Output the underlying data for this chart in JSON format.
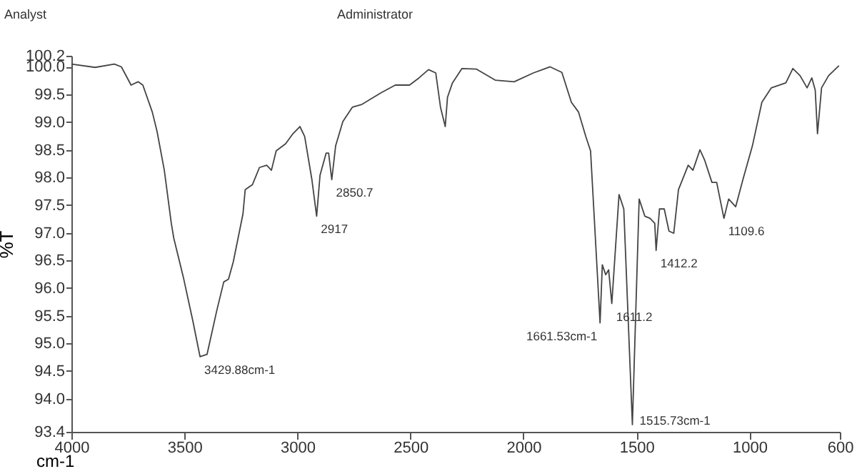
{
  "chart_data": {
    "type": "line",
    "xlabel": "cm-1",
    "ylabel": "%T",
    "annotations": [
      "Analyst",
      "Administrator",
      {
        "text": "3429.88cm-1",
        "x": 3431,
        "y": 94.76
      },
      {
        "text": "2917",
        "x": 2915,
        "y": 97.3
      },
      {
        "text": "2850.7",
        "x": 2848,
        "y": 97.96
      },
      {
        "text": "1661.53cm-1",
        "x": 1661,
        "y": 95.37
      },
      {
        "text": "1611.2",
        "x": 1609,
        "y": 95.72
      },
      {
        "text": "1515.73cm-1",
        "x": 1518,
        "y": 93.53
      },
      {
        "text": "1412.2",
        "x": 1413,
        "y": 96.68
      },
      {
        "text": "1109.6",
        "x": 1113,
        "y": 97.26
      }
    ],
    "x": [
      4000,
      3895,
      3810,
      3779,
      3736,
      3705,
      3684,
      3642,
      3621,
      3589,
      3558,
      3547,
      3505,
      3463,
      3431,
      3400,
      3357,
      3326,
      3305,
      3284,
      3241,
      3231,
      3199,
      3168,
      3136,
      3115,
      3094,
      3052,
      3020,
      2989,
      2968,
      2936,
      2915,
      2900,
      2873,
      2862,
      2848,
      2831,
      2799,
      2757,
      2715,
      2630,
      2567,
      2504,
      2462,
      2420,
      2388,
      2367,
      2346,
      2336,
      2314,
      2272,
      2209,
      2125,
      2041,
      1956,
      1882,
      1830,
      1788,
      1756,
      1724,
      1703,
      1661,
      1651,
      1636,
      1623,
      1609,
      1577,
      1556,
      1518,
      1488,
      1463,
      1440,
      1419,
      1413,
      1398,
      1377,
      1356,
      1335,
      1314,
      1271,
      1250,
      1219,
      1198,
      1166,
      1145,
      1113,
      1092,
      1061,
      1029,
      987,
      945,
      903,
      839,
      808,
      776,
      745,
      724,
      709,
      699,
      681,
      650,
      604
    ],
    "values": [
      100.05,
      99.99,
      100.05,
      100.0,
      99.67,
      99.73,
      99.67,
      99.18,
      98.83,
      98.13,
      97.17,
      96.9,
      96.2,
      95.41,
      94.76,
      94.8,
      95.59,
      96.11,
      96.16,
      96.47,
      97.34,
      97.78,
      97.87,
      98.18,
      98.22,
      98.13,
      98.48,
      98.61,
      98.79,
      98.92,
      98.74,
      97.96,
      97.3,
      98.04,
      98.44,
      98.44,
      97.96,
      98.57,
      99.01,
      99.27,
      99.32,
      99.53,
      99.67,
      99.67,
      99.8,
      99.95,
      99.89,
      99.27,
      98.92,
      99.45,
      99.71,
      99.97,
      99.96,
      99.76,
      99.73,
      99.89,
      100.0,
      99.9,
      99.36,
      99.18,
      98.74,
      98.48,
      95.37,
      96.42,
      96.24,
      96.33,
      95.72,
      97.69,
      97.43,
      93.53,
      97.61,
      97.3,
      97.26,
      97.17,
      96.68,
      97.43,
      97.43,
      97.03,
      96.99,
      97.78,
      98.22,
      98.13,
      98.5,
      98.31,
      97.91,
      97.91,
      97.26,
      97.61,
      97.47,
      97.96,
      98.57,
      99.36,
      99.62,
      99.71,
      99.97,
      99.84,
      99.62,
      99.8,
      99.58,
      98.79,
      99.62,
      99.84,
      100.02
    ],
    "color": "#444444",
    "xlim": [
      4000,
      600
    ],
    "xticks": [
      4000,
      3500,
      3000,
      2500,
      2000,
      1500,
      1000,
      600
    ],
    "ylim": [
      93.4,
      100.2
    ],
    "yticks": [
      {
        "value": 93.4,
        "label": "93.4"
      },
      {
        "value": 94,
        "label": "94.0"
      },
      {
        "value": 94.5,
        "label": "94.5"
      },
      {
        "value": 95,
        "label": "95.0"
      },
      {
        "value": 95.5,
        "label": "95.5"
      },
      {
        "value": 96,
        "label": "96.0"
      },
      {
        "value": 96.5,
        "label": "96.5"
      },
      {
        "value": 97,
        "label": "97.0"
      },
      {
        "value": 97.5,
        "label": "97.5"
      },
      {
        "value": 98,
        "label": "98.0"
      },
      {
        "value": 98.5,
        "label": "98.5"
      },
      {
        "value": 99,
        "label": "99.0"
      },
      {
        "value": 99.5,
        "label": "99.5"
      },
      {
        "value": 100,
        "label": "100.0"
      },
      {
        "value": 100.2,
        "label": "100.2"
      }
    ],
    "grid": false,
    "line_style": "solid",
    "marker": "none"
  }
}
